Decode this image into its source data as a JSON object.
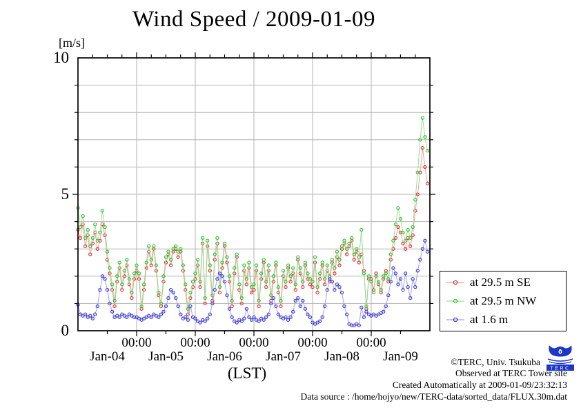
{
  "title": "Wind Speed / 2009-01-09",
  "axes": {
    "y": {
      "unit_label": "[m/s]",
      "ticks": [
        {
          "value": 10,
          "label": "10"
        },
        {
          "value": 5,
          "label": "5"
        },
        {
          "value": 0,
          "label": "0"
        }
      ],
      "range": [
        0,
        10
      ],
      "grid_step": 1
    },
    "x": {
      "time_ticks": [
        "00:00",
        "00:00",
        "00:00",
        "00:00",
        "00:00"
      ],
      "day_labels": [
        "Jan-04",
        "Jan-05",
        "Jan-06",
        "Jan-07",
        "Jan-08",
        "Jan-09"
      ],
      "axis_label": "(LST)"
    }
  },
  "legend": {
    "entries": [
      {
        "label": "at 29.5 m SE",
        "marker_color": "#e03030",
        "line_color": "#f2a0a0"
      },
      {
        "label": "at 29.5 m NW",
        "marker_color": "#2cc42c",
        "line_color": "#94e294"
      },
      {
        "label": "at 1.6 m",
        "marker_color": "#3838d8",
        "line_color": "#a0a0f0"
      }
    ]
  },
  "footer": {
    "lines": [
      "©TERC, Univ. Tsukuba",
      "Observed at TERC Tower site",
      "Created Automatically at 2009-01-09/23:32:13",
      "Data source : /home/hojyo/new/TERC-data/sorted_data/FLUX.30m.dat"
    ]
  },
  "logo": {
    "text": "TERC",
    "color": "#1d36c8"
  },
  "chart_data": {
    "type": "line",
    "title": "Wind Speed / 2009-01-09",
    "xlabel": "(LST)",
    "ylabel": "[m/s]",
    "ylim": [
      0,
      10
    ],
    "grid": true,
    "legend_position": "right-outside",
    "x_start": "2009-01-04 00:00 LST",
    "x_end": "2009-01-10 00:00 LST",
    "x_day_labels": [
      "Jan-04",
      "Jan-05",
      "Jan-06",
      "Jan-07",
      "Jan-08",
      "Jan-09"
    ],
    "sample_interval_hours": 1,
    "note": "values estimated from plot pixels, m/s",
    "series": [
      {
        "name": "at 29.5 m SE",
        "marker_color": "#e03030",
        "line_color": "#f2a0a0",
        "values": [
          3.7,
          3.4,
          3.9,
          3.1,
          3.5,
          2.8,
          3.2,
          3.6,
          3.0,
          3.3,
          3.9,
          3.5,
          2.6,
          2.1,
          1.5,
          0.9,
          1.8,
          2.3,
          1.5,
          2.0,
          2.4,
          1.7,
          1.2,
          1.9,
          2.2,
          1.9,
          0.8,
          1.5,
          2.3,
          2.9,
          2.4,
          3.0,
          2.2,
          1.3,
          0.9,
          1.8,
          2.5,
          2.8,
          2.4,
          2.9,
          3.0,
          2.7,
          2.9,
          2.2,
          1.5,
          0.6,
          1.2,
          1.6,
          1.9,
          2.4,
          1.6,
          3.2,
          1.0,
          3.1,
          2.2,
          1.1,
          2.6,
          3.2,
          1.4,
          2.3,
          3.1,
          2.5,
          1.8,
          0.9,
          2.1,
          2.7,
          1.5,
          1.0,
          2.2,
          1.7,
          2.3,
          1.4,
          1.5,
          2.2,
          0.9,
          1.9,
          2.5,
          1.6,
          2.2,
          1.1,
          1.8,
          2.4,
          1.4,
          0.9,
          2.0,
          1.6,
          2.3,
          1.8,
          2.1,
          1.5,
          2.6,
          2.1,
          1.6,
          2.4,
          1.9,
          1.7,
          1.6,
          2.5,
          1.4,
          1.9,
          2.4,
          1.7,
          2.2,
          1.8,
          2.5,
          2.1,
          2.7,
          2.4,
          3.0,
          3.2,
          2.8,
          3.1,
          3.3,
          2.6,
          2.9,
          2.5,
          2.8,
          2.2,
          0.8,
          1.9,
          1.9,
          1.5,
          2.1,
          1.7,
          1.4,
          1.9,
          2.2,
          1.8,
          2.6,
          3.0,
          3.4,
          3.8,
          3.6,
          3.2,
          3.0,
          3.4,
          3.1,
          3.5,
          4.4,
          5.0,
          5.8,
          6.7,
          6.0,
          5.4
        ]
      },
      {
        "name": "at 29.5 m NW",
        "marker_color": "#2cc42c",
        "line_color": "#94e294",
        "values": [
          4.5,
          3.8,
          4.2,
          3.4,
          3.7,
          3.1,
          3.4,
          3.9,
          3.3,
          3.6,
          4.4,
          3.8,
          2.9,
          2.3,
          1.7,
          1.1,
          2.0,
          2.5,
          1.7,
          2.2,
          2.6,
          1.9,
          1.4,
          2.1,
          2.4,
          2.1,
          0.9,
          1.7,
          2.5,
          3.1,
          2.6,
          3.1,
          2.4,
          1.4,
          1.0,
          2.0,
          2.7,
          2.9,
          2.6,
          3.0,
          3.1,
          2.9,
          3.0,
          2.4,
          1.7,
          0.8,
          1.4,
          1.8,
          2.1,
          2.6,
          1.8,
          3.4,
          1.2,
          3.3,
          2.4,
          1.3,
          2.8,
          3.4,
          1.6,
          2.5,
          3.2,
          2.7,
          2.0,
          1.1,
          2.3,
          2.8,
          1.7,
          1.2,
          2.4,
          1.9,
          2.5,
          1.6,
          1.7,
          2.4,
          1.1,
          2.1,
          2.6,
          1.8,
          2.4,
          1.3,
          2.0,
          2.5,
          1.6,
          1.1,
          2.2,
          1.8,
          2.4,
          2.0,
          2.3,
          1.7,
          2.7,
          2.3,
          1.8,
          2.5,
          2.1,
          1.9,
          1.8,
          2.7,
          1.6,
          2.1,
          2.5,
          1.9,
          2.4,
          2.0,
          2.6,
          2.3,
          2.9,
          2.6,
          3.1,
          3.3,
          3.0,
          3.2,
          3.4,
          2.8,
          3.0,
          2.7,
          3.7,
          2.1,
          0.9,
          2.0,
          1.8,
          1.4,
          2.0,
          1.8,
          1.5,
          2.0,
          2.1,
          1.9,
          2.8,
          3.3,
          3.9,
          4.5,
          4.1,
          3.6,
          3.3,
          3.7,
          3.4,
          3.8,
          4.8,
          5.8,
          7.0,
          7.8,
          7.1,
          6.6
        ]
      },
      {
        "name": "at 1.6 m",
        "marker_color": "#3838d8",
        "line_color": "#a0a0f0",
        "values": [
          0.95,
          0.6,
          0.55,
          0.6,
          0.5,
          0.55,
          0.45,
          0.6,
          0.9,
          1.5,
          2.0,
          1.9,
          1.5,
          1.0,
          0.7,
          0.5,
          0.55,
          0.5,
          0.6,
          0.55,
          0.5,
          0.6,
          0.55,
          0.5,
          0.5,
          0.45,
          0.4,
          0.45,
          0.5,
          0.55,
          0.5,
          0.6,
          0.55,
          0.5,
          0.6,
          0.7,
          0.9,
          1.2,
          1.5,
          1.4,
          1.2,
          0.9,
          0.6,
          0.45,
          0.5,
          0.4,
          0.9,
          0.5,
          0.45,
          0.35,
          0.3,
          0.4,
          0.35,
          0.45,
          0.6,
          1.0,
          1.5,
          1.9,
          2.1,
          2.0,
          1.8,
          1.3,
          0.8,
          0.5,
          0.35,
          0.3,
          0.4,
          0.35,
          0.45,
          0.8,
          0.5,
          0.4,
          0.5,
          0.4,
          0.35,
          0.45,
          0.4,
          0.5,
          0.6,
          1.0,
          1.2,
          0.9,
          0.6,
          0.5,
          0.45,
          0.5,
          0.4,
          0.5,
          0.7,
          1.1,
          1.2,
          0.9,
          1.1,
          0.8,
          0.6,
          0.5,
          0.3,
          0.25,
          0.3,
          0.35,
          0.5,
          0.9,
          1.5,
          1.9,
          1.8,
          1.5,
          1.7,
          1.6,
          1.4,
          0.9,
          0.6,
          0.25,
          0.2,
          0.2,
          0.25,
          0.2,
          0.85,
          0.5,
          0.7,
          0.6,
          0.55,
          0.6,
          0.55,
          0.6,
          0.65,
          0.7,
          0.9,
          1.3,
          1.8,
          2.3,
          2.1,
          1.7,
          1.9,
          1.5,
          2.1,
          1.6,
          1.2,
          1.9,
          1.6,
          2.2,
          2.6,
          3.0,
          3.3,
          2.9
        ]
      }
    ]
  }
}
